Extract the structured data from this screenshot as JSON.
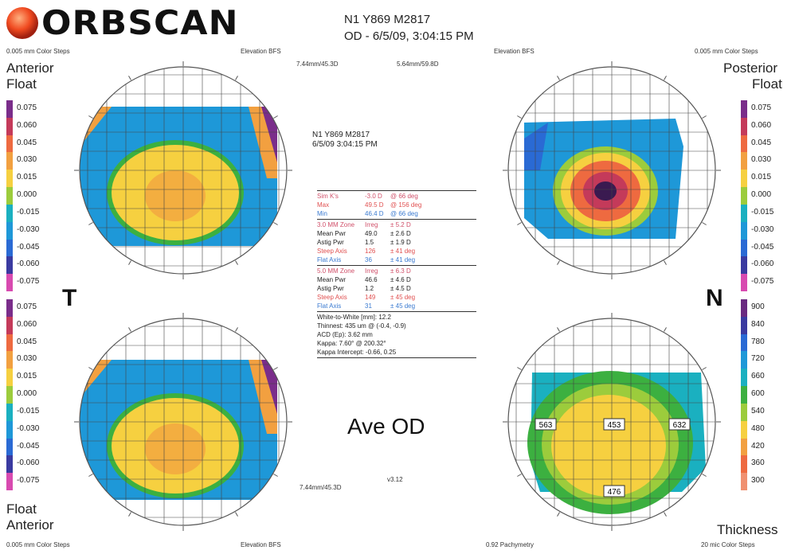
{
  "header": {
    "brand": "ORBSCAN",
    "patient_line_1": "N1 Y869 M2817",
    "patient_line_2": "OD - 6/5/09, 3:04:15 PM"
  },
  "top_left": {
    "steps": "0.005 mm Color Steps",
    "ref": "Elevation BFS",
    "label_1": "Anterior",
    "label_2": "Float"
  },
  "top_right": {
    "steps": "0.005 mm Color Steps",
    "ref": "Elevation BFS",
    "label_1": "Posterior",
    "label_2": "Float"
  },
  "bottom_left": {
    "steps": "0.005 mm Color Steps",
    "ref": "Elevation BFS",
    "label_1": "Float",
    "label_2": "Anterior"
  },
  "bottom_right": {
    "steps": "20 mic Color Steps",
    "ref": "0.92 Pachymetry",
    "label_1": "Thickness"
  },
  "center_top": {
    "bfs_left": "7.44mm/45.3D",
    "bfs_right": "5.64mm/59.8D"
  },
  "center_info": {
    "id": "N1 Y869 M2817",
    "datetime": "6/5/09 3:04:15 PM"
  },
  "sim_k": [
    {
      "label": "Sim K's",
      "value": "-3.0 D",
      "axis": "@ 66 deg",
      "color": "#d0506a"
    },
    {
      "label": "Max",
      "value": "49.5 D",
      "axis": "@ 156 deg",
      "color": "#e05050"
    },
    {
      "label": "Min",
      "value": "46.4 D",
      "axis": "@ 66 deg",
      "color": "#3a7ad0"
    }
  ],
  "zone3": [
    {
      "label": "3.0 MM Zone",
      "value": "Irreg",
      "sd": "± 5.2 D",
      "color": "#d0506a"
    },
    {
      "label": "Mean Pwr",
      "value": "49.0",
      "sd": "± 2.6 D",
      "color": "#222"
    },
    {
      "label": "Astig Pwr",
      "value": "1.5",
      "sd": "± 1.9 D",
      "color": "#222"
    },
    {
      "label": "Steep Axis",
      "value": "126",
      "sd": "± 41 deg",
      "color": "#e05050"
    },
    {
      "label": "Flat Axis",
      "value": "36",
      "sd": "± 41 deg",
      "color": "#3a7ad0"
    }
  ],
  "zone5": [
    {
      "label": "5.0 MM Zone",
      "value": "Irreg",
      "sd": "± 6.3 D",
      "color": "#d0506a"
    },
    {
      "label": "Mean Pwr",
      "value": "46.6",
      "sd": "± 4.6 D",
      "color": "#222"
    },
    {
      "label": "Astig Pwr",
      "value": "1.2",
      "sd": "± 4.5 D",
      "color": "#222"
    },
    {
      "label": "Steep Axis",
      "value": "149",
      "sd": "± 45 deg",
      "color": "#e05050"
    },
    {
      "label": "Flat Axis",
      "value": "31",
      "sd": "± 45 deg",
      "color": "#3a7ad0"
    }
  ],
  "misc": [
    "White-to-White [mm]:  12.2",
    "Thinnest: 435 um @ (-0.4, -0.9)",
    "ACD (Ep): 3.62 mm",
    "Kappa: 7.60° @ 200.32°",
    "Kappa Intercept: -0.66, 0.25"
  ],
  "side_T": "T",
  "side_N": "N",
  "ave_od": "Ave OD",
  "bottom_bfs": "7.44mm/45.3D",
  "version": "v3.12",
  "float_scale": [
    "0.075",
    "0.060",
    "0.045",
    "0.030",
    "0.015",
    "0.000",
    "-0.015",
    "-0.030",
    "-0.045",
    "-0.060",
    "-0.075"
  ],
  "float_colors": [
    "#7a2d8a",
    "#c43a5a",
    "#ee6a40",
    "#f2a040",
    "#f6d040",
    "#9ccc3c",
    "#1ab0c0",
    "#1e98d8",
    "#2a6ad4",
    "#3a3aa0",
    "#d84ab0"
  ],
  "thick_scale": [
    "900",
    "840",
    "780",
    "720",
    "660",
    "600",
    "540",
    "480",
    "420",
    "360",
    "300"
  ],
  "thick_colors": [
    "#6a2a80",
    "#3a3aa0",
    "#2a6ad4",
    "#1e98d8",
    "#1ab0c0",
    "#3cb040",
    "#9ccc3c",
    "#f6d040",
    "#f2a040",
    "#ee6a40",
    "#f09070"
  ],
  "pachy_values": {
    "left": "563",
    "center": "453",
    "right": "632",
    "bottom": "476"
  }
}
